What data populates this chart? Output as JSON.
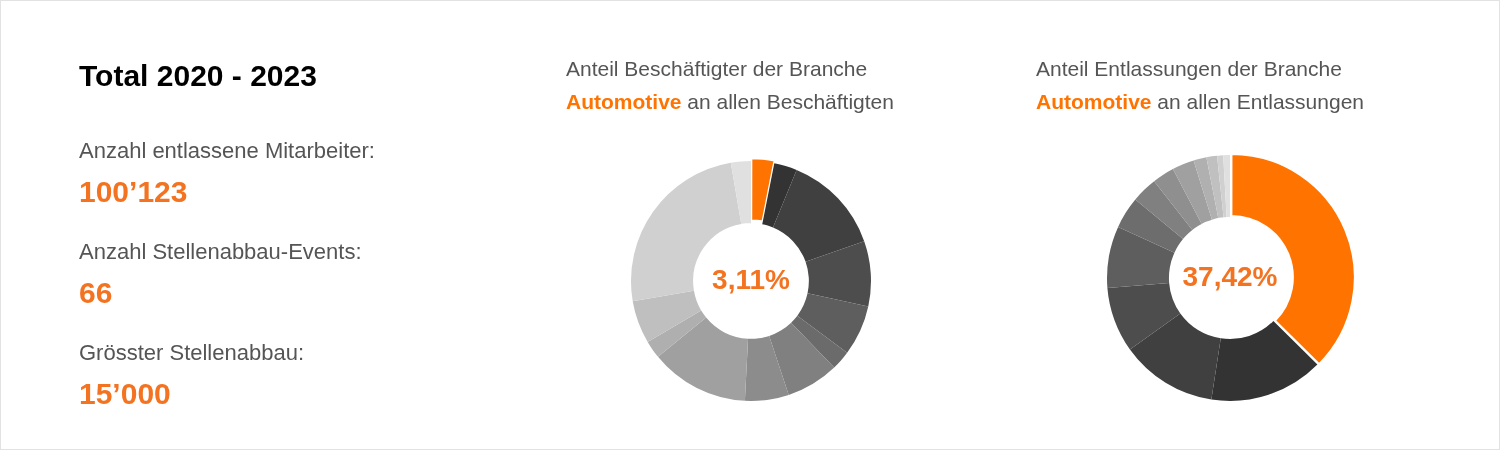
{
  "chart_data": [
    {
      "type": "other",
      "title": "Total 2020 - 2023",
      "annotations": [
        "Anzahl entlassene Mitarbeiter:",
        "100’123",
        "Anzahl Stellenabbau-Events:",
        "66",
        "Grösster Stellenabbau:",
        "15’000"
      ]
    },
    {
      "type": "donut",
      "title": "Anteil Beschäftigter der Branche",
      "subtitle": "Automotive an allen Beschäftigten",
      "categories": [
        null,
        null,
        null,
        null,
        null,
        null,
        null,
        null,
        null,
        null,
        null,
        null,
        null
      ],
      "values": [
        3.11,
        3.1,
        13.4,
        8.8,
        6.8,
        2.6,
        7.1,
        5.9,
        13.3,
        2.4,
        5.8,
        25.0,
        2.69
      ],
      "colors": [
        "#ff7300",
        "#333333",
        "#404040",
        "#4d4d4d",
        "#5e5e5e",
        "#6b6b6b",
        "#808080",
        "#8c8c8c",
        "#a0a0a0",
        "#afafaf",
        "#bfbfbf",
        "#d0d0d0",
        "#e0e0e0"
      ],
      "annotations": [
        "3,11%"
      ]
    },
    {
      "type": "donut",
      "title": "Anteil Entlassungen der Branche",
      "subtitle": "Automotive an allen Entlassungen",
      "categories": [
        null,
        null,
        null,
        null,
        null,
        null,
        null,
        null,
        null,
        null,
        null,
        null,
        null
      ],
      "values": [
        37.42,
        15.0,
        12.7,
        8.6,
        8.1,
        4.2,
        3.4,
        2.9,
        2.9,
        1.7,
        1.4,
        0.8,
        0.88
      ],
      "colors": [
        "#ff7300",
        "#333333",
        "#404040",
        "#4d4d4d",
        "#5e5e5e",
        "#6d6d6d",
        "#808080",
        "#8f8f8f",
        "#a0a0a0",
        "#b0b0b0",
        "#c0c0c0",
        "#d0d0d0",
        "#e0e0e0"
      ],
      "annotations": [
        "37,42%"
      ]
    }
  ]
}
